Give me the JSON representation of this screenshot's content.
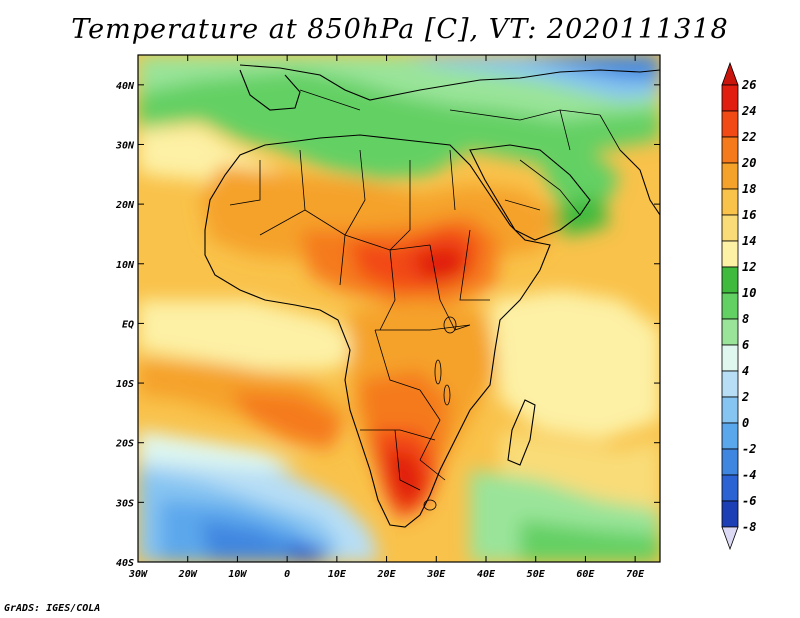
{
  "title": "Temperature at 850hPa [C], VT: 2020111318",
  "footer": "GrADS: IGES/COLA",
  "map": {
    "variable": "Temperature at 850hPa",
    "units": "C",
    "valid_time": "2020111318",
    "region": "Africa, Arabian Peninsula, Southern Europe, Atlantic and Indian Oceans",
    "lon_range": [
      -30,
      75
    ],
    "lat_range": [
      -40,
      45
    ],
    "lon_ticks": [
      "30W",
      "20W",
      "10W",
      "0",
      "10E",
      "20E",
      "30E",
      "40E",
      "50E",
      "60E",
      "70E"
    ],
    "lat_ticks": [
      "40N",
      "30N",
      "20N",
      "10N",
      "EQ",
      "10S",
      "20S",
      "30S",
      "40S"
    ]
  },
  "colorbar": {
    "labels": [
      "26",
      "24",
      "22",
      "20",
      "18",
      "16",
      "14",
      "12",
      "10",
      "8",
      "6",
      "4",
      "2",
      "0",
      "-2",
      "-4",
      "-6",
      "-8"
    ],
    "colors": [
      "#e01f10",
      "#f24a14",
      "#f57a1c",
      "#f5a22b",
      "#f9c24a",
      "#f9dc78",
      "#fdf1a6",
      "#3fba3c",
      "#63d063",
      "#9ae49a",
      "#dff7ef",
      "#b7def5",
      "#86c4f2",
      "#5ba7ec",
      "#3f86e0",
      "#2b63d4",
      "#1d3fb6",
      "#0c1f7e"
    ],
    "top_triangle_color": "#c9150c",
    "bottom_triangle_color": "#dcd9f5"
  }
}
